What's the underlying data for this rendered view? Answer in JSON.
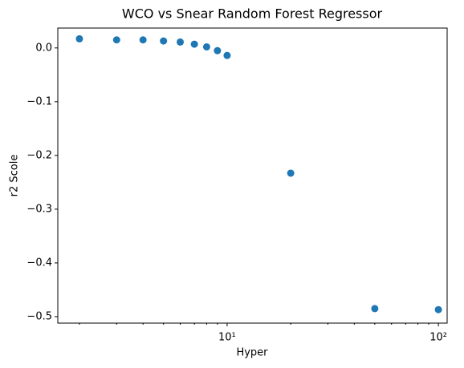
{
  "chart_data": {
    "type": "scatter",
    "title": "WCO vs Snear Random Forest Regressor",
    "xlabel": "Hyper",
    "ylabel": "r2 Scole",
    "x": [
      2,
      3,
      4,
      5,
      6,
      7,
      8,
      9,
      10,
      20,
      50,
      100
    ],
    "series": [
      {
        "color": "#1f77b4",
        "values": [
          0.017,
          0.015,
          0.015,
          0.013,
          0.011,
          0.007,
          0.002,
          -0.005,
          -0.014,
          -0.233,
          -0.485,
          -0.487
        ]
      }
    ],
    "xscale": "log",
    "xlim": [
      1.58,
      110
    ],
    "ylim": [
      -0.512,
      0.037
    ],
    "xticks": [
      {
        "value": 10,
        "label": "10¹"
      },
      {
        "value": 100,
        "label": "10²"
      }
    ],
    "xminorticks": [
      2,
      3,
      4,
      5,
      6,
      7,
      8,
      9,
      20,
      30,
      40,
      50,
      60,
      70,
      80,
      90
    ],
    "yticks": [
      {
        "value": 0,
        "label": "0.0"
      },
      {
        "value": -0.1,
        "label": "−0.1"
      },
      {
        "value": -0.2,
        "label": "−0.2"
      },
      {
        "value": -0.3,
        "label": "−0.3"
      },
      {
        "value": -0.4,
        "label": "−0.4"
      },
      {
        "value": -0.5,
        "label": "−0.5"
      }
    ]
  }
}
